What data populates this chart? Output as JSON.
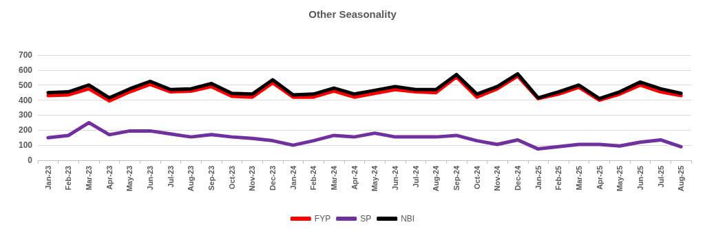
{
  "chart_data": {
    "type": "line",
    "title": "Other Seasonality",
    "categories": [
      "Jan-23",
      "Feb-23",
      "Mar-23",
      "Apr-23",
      "May-23",
      "Jun-23",
      "Jul-23",
      "Aug-23",
      "Sep-23",
      "Oct-23",
      "Nov-23",
      "Dec-23",
      "Jan-24",
      "Feb-24",
      "Mar-24",
      "Apr-24",
      "May-24",
      "Jun-24",
      "Jul-24",
      "Aug-24",
      "Sep-24",
      "Oct-24",
      "Nov-24",
      "Dec-24",
      "Jan-25",
      "Feb-25",
      "Mar-25",
      "Apr-25",
      "May-25",
      "Jun-25",
      "Jul-25",
      "Aug-25"
    ],
    "series": [
      {
        "name": "FYP",
        "color": "#ff0000",
        "values": [
          430,
          435,
          475,
          395,
          455,
          505,
          455,
          460,
          490,
          425,
          420,
          515,
          420,
          420,
          460,
          420,
          445,
          470,
          455,
          450,
          555,
          420,
          475,
          560,
          410,
          440,
          485,
          400,
          440,
          500,
          455,
          430
        ]
      },
      {
        "name": "SP",
        "color": "#7030a0",
        "values": [
          150,
          165,
          250,
          170,
          195,
          195,
          175,
          155,
          170,
          155,
          145,
          130,
          100,
          130,
          165,
          155,
          180,
          155,
          155,
          155,
          165,
          130,
          105,
          135,
          75,
          90,
          105,
          105,
          95,
          120,
          135,
          90
        ]
      },
      {
        "name": "NBI",
        "color": "#000000",
        "values": [
          450,
          455,
          500,
          415,
          475,
          525,
          470,
          475,
          510,
          445,
          440,
          535,
          435,
          440,
          480,
          440,
          465,
          490,
          470,
          470,
          570,
          440,
          490,
          575,
          415,
          455,
          500,
          410,
          455,
          520,
          475,
          445
        ]
      }
    ],
    "ylim": [
      0,
      700
    ],
    "yticks": [
      0,
      100,
      200,
      300,
      400,
      500,
      600,
      700
    ],
    "grid": "y",
    "legend": "bottom",
    "marker": "none",
    "line_style": "solid"
  }
}
